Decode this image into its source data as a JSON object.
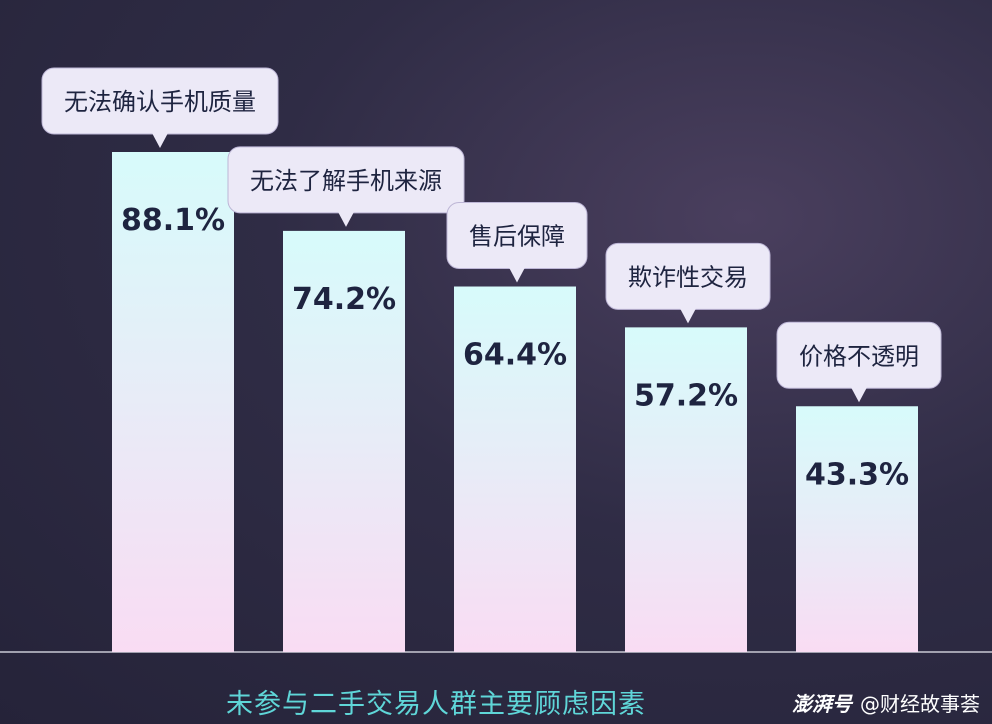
{
  "chart_data": {
    "type": "bar",
    "title": "未参与二手交易人群主要顾虑因素",
    "categories": [
      "无法确认手机质量",
      "无法了解手机来源",
      "售后保障",
      "欺诈性交易",
      "价格不透明"
    ],
    "values": [
      88.1,
      74.2,
      64.4,
      57.2,
      43.3
    ],
    "value_labels": [
      "88.1%",
      "74.2%",
      "64.4%",
      "57.2%",
      "43.3%"
    ],
    "unit": "%",
    "ylim": [
      0,
      100
    ],
    "grid": false,
    "bar_gradient": [
      "#d7fbfb",
      "#f9dcf3"
    ],
    "colors": {
      "caption": "#5fd6d8",
      "label_text": "#1e2440",
      "bubble": "#ece9f7"
    }
  },
  "watermark": {
    "logo": "澎湃号",
    "account": "@财经故事荟"
  }
}
